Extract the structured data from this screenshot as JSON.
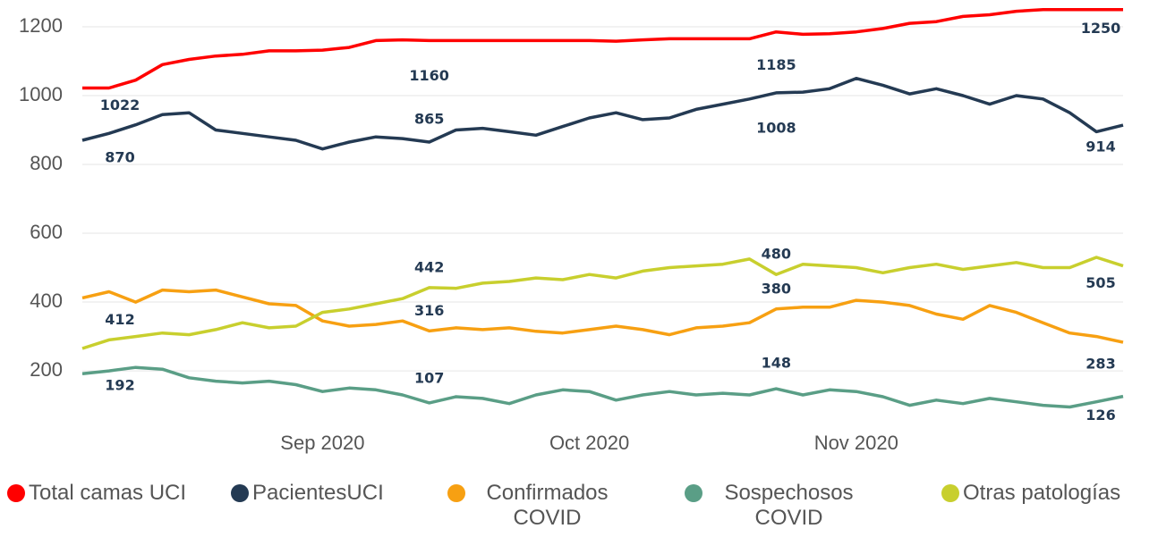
{
  "chart_data": {
    "type": "line",
    "categories": [
      null,
      null,
      null,
      null,
      null,
      null,
      null,
      null,
      null,
      "Sep 2020",
      null,
      null,
      null,
      null,
      null,
      null,
      null,
      null,
      null,
      "Oct 2020",
      null,
      null,
      null,
      null,
      null,
      null,
      null,
      null,
      null,
      "Nov 2020",
      null,
      null,
      null,
      null,
      null,
      null,
      null,
      null,
      null,
      null
    ],
    "ylim": [
      60,
      1270
    ],
    "yticks": [
      200,
      400,
      600,
      800,
      1000,
      1200
    ],
    "grid": true,
    "legend": "bottom",
    "series": [
      {
        "name": "Total camas UCI",
        "color": "#ff0000",
        "values": [
          1022,
          1022,
          1045,
          1090,
          1105,
          1115,
          1120,
          1130,
          1130,
          1132,
          1140,
          1160,
          1162,
          1160,
          1160,
          1160,
          1160,
          1160,
          1160,
          1160,
          1158,
          1162,
          1165,
          1165,
          1165,
          1165,
          1185,
          1178,
          1180,
          1185,
          1195,
          1210,
          1215,
          1230,
          1235,
          1245,
          1250,
          1250,
          1250,
          1250
        ],
        "value_labels": [
          "1022",
          null,
          null,
          null,
          null,
          null,
          null,
          null,
          null,
          null,
          null,
          null,
          null,
          "1160",
          null,
          null,
          null,
          null,
          null,
          null,
          null,
          null,
          null,
          null,
          null,
          null,
          "1185",
          null,
          null,
          null,
          null,
          null,
          null,
          null,
          null,
          null,
          null,
          null,
          null,
          "1250"
        ]
      },
      {
        "name": "PacientesUCI",
        "color": "#243a53",
        "values": [
          870,
          890,
          915,
          945,
          950,
          900,
          890,
          880,
          870,
          845,
          865,
          880,
          875,
          865,
          900,
          905,
          895,
          885,
          910,
          935,
          950,
          930,
          935,
          960,
          975,
          990,
          1008,
          1010,
          1020,
          1050,
          1030,
          1005,
          1020,
          1000,
          975,
          1000,
          990,
          950,
          895,
          914
        ],
        "value_labels": [
          "870",
          null,
          null,
          null,
          null,
          null,
          null,
          null,
          null,
          null,
          null,
          null,
          null,
          "865",
          null,
          null,
          null,
          null,
          null,
          null,
          null,
          null,
          null,
          null,
          null,
          null,
          "1008",
          null,
          null,
          null,
          null,
          null,
          null,
          null,
          null,
          null,
          null,
          null,
          null,
          "914"
        ]
      },
      {
        "name": "Confirmados COVID",
        "color": "#f7a012",
        "values": [
          412,
          430,
          400,
          435,
          430,
          435,
          415,
          395,
          390,
          345,
          330,
          335,
          345,
          316,
          325,
          320,
          325,
          315,
          310,
          320,
          330,
          320,
          305,
          325,
          330,
          340,
          380,
          385,
          385,
          405,
          400,
          390,
          365,
          350,
          390,
          370,
          340,
          310,
          300,
          283
        ],
        "value_labels": [
          "412",
          null,
          null,
          null,
          null,
          null,
          null,
          null,
          null,
          null,
          null,
          null,
          null,
          "316",
          null,
          null,
          null,
          null,
          null,
          null,
          null,
          null,
          null,
          null,
          null,
          null,
          "380",
          null,
          null,
          null,
          null,
          null,
          null,
          null,
          null,
          null,
          null,
          null,
          null,
          "283"
        ]
      },
      {
        "name": "Sospechosos COVID",
        "color": "#5a9e86",
        "values": [
          192,
          200,
          210,
          205,
          180,
          170,
          165,
          170,
          160,
          140,
          150,
          145,
          130,
          107,
          125,
          120,
          105,
          130,
          145,
          140,
          115,
          130,
          140,
          130,
          135,
          130,
          148,
          130,
          145,
          140,
          125,
          100,
          115,
          105,
          120,
          110,
          100,
          95,
          110,
          126
        ],
        "value_labels": [
          "192",
          null,
          null,
          null,
          null,
          null,
          null,
          null,
          null,
          null,
          null,
          null,
          null,
          "107",
          null,
          null,
          null,
          null,
          null,
          null,
          null,
          null,
          null,
          null,
          null,
          null,
          "148",
          null,
          null,
          null,
          null,
          null,
          null,
          null,
          null,
          null,
          null,
          null,
          null,
          "126"
        ]
      },
      {
        "name": "Otras patologías",
        "color": "#c8cf2e",
        "values": [
          265,
          290,
          300,
          310,
          305,
          320,
          340,
          325,
          330,
          370,
          380,
          395,
          410,
          442,
          440,
          455,
          460,
          470,
          465,
          480,
          470,
          490,
          500,
          505,
          510,
          525,
          480,
          510,
          505,
          500,
          485,
          500,
          510,
          495,
          505,
          515,
          500,
          500,
          530,
          505
        ],
        "value_labels": [
          null,
          null,
          null,
          null,
          null,
          null,
          null,
          null,
          null,
          null,
          null,
          null,
          null,
          "442",
          null,
          null,
          null,
          null,
          null,
          null,
          null,
          null,
          null,
          null,
          null,
          null,
          "480",
          null,
          null,
          null,
          null,
          null,
          null,
          null,
          null,
          null,
          null,
          null,
          null,
          "505"
        ]
      }
    ]
  }
}
